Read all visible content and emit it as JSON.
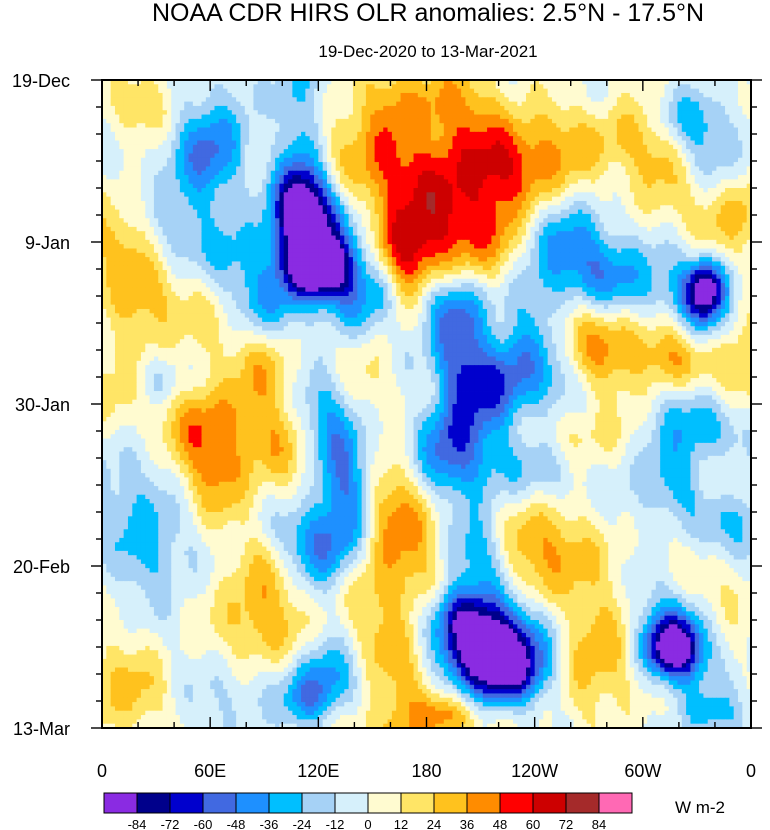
{
  "chart_data": {
    "type": "heatmap",
    "title": "NOAA CDR HIRS OLR anomalies: 2.5°N - 17.5°N",
    "subtitle": "19-Dec-2020 to 13-Mar-2021",
    "x_tick_labels": [
      "0",
      "60E",
      "120E",
      "180",
      "120W",
      "60W",
      "0"
    ],
    "x_tick_longitudes": [
      0,
      60,
      120,
      180,
      240,
      300,
      360
    ],
    "xlim": [
      0,
      360
    ],
    "y_tick_labels": [
      "19-Dec",
      "9-Jan",
      "30-Jan",
      "20-Feb",
      "13-Mar"
    ],
    "y_tick_days": [
      0,
      21,
      42,
      63,
      84
    ],
    "ylim_days": [
      0,
      84
    ],
    "colorbar": {
      "unit_label": "W m-2",
      "tick_labels": [
        "-84",
        "-72",
        "-60",
        "-48",
        "-36",
        "-24",
        "-12",
        "0",
        "12",
        "24",
        "36",
        "48",
        "60",
        "72",
        "84"
      ],
      "colors": [
        "#8a2be2",
        "#00008b",
        "#0000cd",
        "#4169e1",
        "#1e90ff",
        "#00bfff",
        "#a6d2f6",
        "#d6f0fb",
        "#fffbd0",
        "#ffe566",
        "#ffc21e",
        "#ff8c00",
        "#ff0000",
        "#cd0000",
        "#a52a2a",
        "#ff69b4"
      ]
    }
  }
}
